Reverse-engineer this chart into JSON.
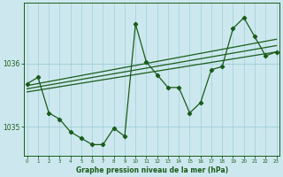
{
  "title": "Graphe pression niveau de la mer (hPa)",
  "bg_color": "#cce8ee",
  "grid_color": "#9ecdd8",
  "line_color": "#1a5c1a",
  "x_ticks": [
    0,
    1,
    2,
    3,
    4,
    5,
    6,
    7,
    8,
    9,
    10,
    11,
    12,
    13,
    14,
    15,
    16,
    17,
    18,
    19,
    20,
    21,
    22,
    23
  ],
  "y_ticks": [
    1035,
    1036
  ],
  "ylim": [
    1034.55,
    1036.95
  ],
  "xlim": [
    -0.3,
    23.3
  ],
  "main_series_x": [
    0,
    1,
    2,
    3,
    4,
    5,
    6,
    7,
    8,
    9,
    10,
    11,
    12,
    13,
    14,
    15,
    16,
    17,
    18,
    19,
    20,
    21,
    22,
    23
  ],
  "main_series_y": [
    1035.68,
    1035.78,
    1035.22,
    1035.12,
    1034.92,
    1034.82,
    1034.72,
    1034.72,
    1034.98,
    1034.85,
    1036.62,
    1036.02,
    1035.82,
    1035.62,
    1035.62,
    1035.22,
    1035.38,
    1035.9,
    1035.95,
    1036.55,
    1036.72,
    1036.42,
    1036.12,
    1036.18
  ],
  "trend_line1_x": [
    0,
    23
  ],
  "trend_line1_y": [
    1035.55,
    1036.18
  ],
  "trend_line2_x": [
    0,
    23
  ],
  "trend_line2_y": [
    1035.6,
    1036.28
  ],
  "trend_line3_x": [
    0,
    23
  ],
  "trend_line3_y": [
    1035.65,
    1036.38
  ]
}
